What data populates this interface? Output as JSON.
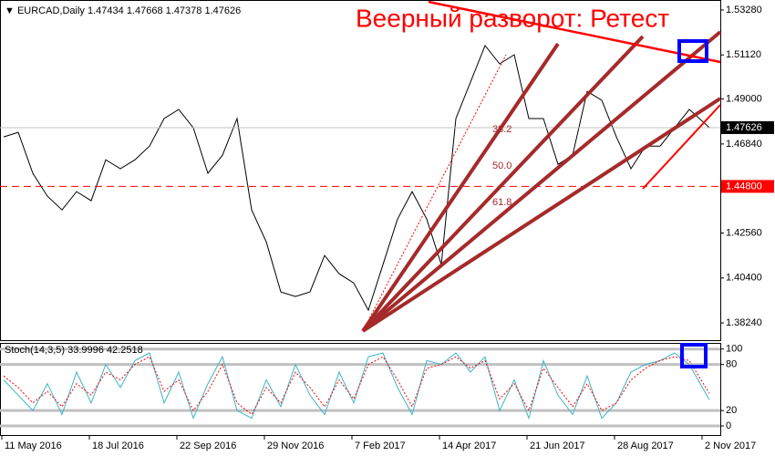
{
  "chart_data": [
    {
      "type": "line",
      "title": "EURCAD,Daily",
      "ohlc": [
        1.47434,
        1.47668,
        1.47378,
        1.47626
      ],
      "annotation": "Веерный разворот: Ретест",
      "fib_levels": [
        38.2,
        {
          "value": 50,
          "label": "50.0"
        },
        61.8
      ],
      "color": "#000000",
      "x": [
        2,
        10,
        18,
        26,
        34,
        42,
        50,
        58,
        66,
        74,
        82,
        90,
        98,
        106,
        114,
        122,
        130,
        138,
        146,
        154,
        162,
        170,
        178,
        186,
        194,
        202,
        210,
        218,
        226,
        234,
        242,
        250,
        258,
        266,
        274,
        282,
        290,
        298,
        306,
        314,
        322,
        330,
        338,
        346,
        354,
        362,
        370,
        378,
        389
      ],
      "values": [
        1.4718,
        1.474,
        1.4543,
        1.4433,
        1.4367,
        1.4455,
        1.4411,
        1.4608,
        1.4565,
        1.4608,
        1.4674,
        1.4806,
        1.485,
        1.4762,
        1.4543,
        1.463,
        1.4806,
        1.4367,
        1.4214,
        1.3973,
        1.3951,
        1.3973,
        1.4148,
        1.406,
        1.4016,
        1.3885,
        1.4104,
        1.4323,
        1.4455,
        1.4323,
        1.4104,
        1.4806,
        1.4981,
        1.5157,
        1.5069,
        1.5113,
        1.4806,
        1.4806,
        1.4586,
        1.463,
        1.4937,
        1.4894,
        1.4718,
        1.4565,
        1.4674,
        1.4674,
        1.4762,
        1.485,
        1.47626
      ],
      "xlim": [
        0,
        395
      ],
      "xticks": [
        {
          "value": 1,
          "label": "11 May 2016"
        },
        {
          "value": 49,
          "label": "18 Jul 2016"
        },
        {
          "value": 97,
          "label": "22 Sep 2016"
        },
        {
          "value": 145,
          "label": "29 Nov 2016"
        },
        {
          "value": 193,
          "label": "7 Feb 2017"
        },
        {
          "value": 241,
          "label": "14 Apr 2017"
        },
        {
          "value": 289,
          "label": "21 Jun 2017"
        },
        {
          "value": 337,
          "label": "28 Aug 2017"
        },
        {
          "value": 385,
          "label": "2 Nov 2017"
        }
      ],
      "ylim": [
        1.3741,
        1.5376
      ],
      "yticks": [
        {
          "value": 1.5328,
          "label": "1.53280"
        },
        {
          "value": 1.5112,
          "label": "1.51120"
        },
        {
          "value": 1.49,
          "label": "1.49000"
        },
        {
          "value": 1.4684,
          "label": "1.46840"
        },
        {
          "value": 1.4256,
          "label": "1.42560"
        },
        {
          "value": 1.404,
          "label": "1.40400"
        },
        {
          "value": 1.3824,
          "label": "1.38240"
        }
      ],
      "level": {
        "value": 1.448,
        "label": "1.44800"
      },
      "level_color": "#ff0000",
      "grid": false
    },
    {
      "type": "line",
      "title": "Stoch(14,3,5)",
      "series": [
        {
          "color": "#3cb4c8",
          "style": "solid",
          "values": [
            60,
            40,
            20,
            55,
            15,
            70,
            30,
            80,
            50,
            85,
            95,
            30,
            70,
            10,
            55,
            90,
            20,
            10,
            60,
            25,
            80,
            40,
            15,
            70,
            30,
            90,
            95,
            50,
            15,
            85,
            80,
            95,
            70,
            90,
            20,
            60,
            10,
            85,
            40,
            15,
            65,
            10,
            30,
            70,
            80,
            85,
            95,
            80,
            33.9996
          ]
        },
        {
          "color": "#ff0000",
          "style": "dotted",
          "values": [
            65,
            50,
            30,
            45,
            25,
            55,
            40,
            70,
            60,
            80,
            90,
            45,
            60,
            20,
            45,
            80,
            30,
            15,
            50,
            30,
            70,
            50,
            25,
            60,
            35,
            80,
            90,
            60,
            25,
            75,
            80,
            90,
            75,
            85,
            35,
            55,
            20,
            75,
            50,
            25,
            55,
            20,
            30,
            60,
            75,
            85,
            90,
            85,
            42.2518
          ]
        }
      ],
      "ylim": [
        -13,
        108
      ],
      "yticks": [
        100,
        80,
        20,
        0
      ],
      "grid": true
    }
  ]
}
